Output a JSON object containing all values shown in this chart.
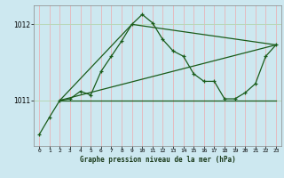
{
  "title": "Graphe pression niveau de la mer (hPa)",
  "bg_color": "#cde8f0",
  "line_color": "#1a5c1a",
  "grid_color_v": "#e8b4b8",
  "grid_color_h": "#b8d8b8",
  "xlim": [
    -0.5,
    23.5
  ],
  "ylim": [
    1010.4,
    1012.25
  ],
  "yticks": [
    1011,
    1012
  ],
  "xticks": [
    0,
    1,
    2,
    3,
    4,
    5,
    6,
    7,
    8,
    9,
    10,
    11,
    12,
    13,
    14,
    15,
    16,
    17,
    18,
    19,
    20,
    21,
    22,
    23
  ],
  "line1_x": [
    0,
    1,
    2,
    3,
    4,
    5,
    6,
    7,
    8,
    9,
    10,
    11,
    12,
    13,
    14,
    15,
    16,
    17,
    18,
    19,
    20,
    21,
    22,
    23
  ],
  "line1_y": [
    1010.55,
    1010.78,
    1011.0,
    1011.02,
    1011.12,
    1011.07,
    1011.38,
    1011.58,
    1011.78,
    1012.0,
    1012.13,
    1012.02,
    1011.8,
    1011.65,
    1011.58,
    1011.35,
    1011.25,
    1011.25,
    1011.02,
    1011.02,
    1011.1,
    1011.22,
    1011.58,
    1011.73
  ],
  "line2_x": [
    2,
    23
  ],
  "line2_y": [
    1011.0,
    1011.0
  ],
  "line3_x": [
    2,
    23
  ],
  "line3_y": [
    1011.0,
    1011.73
  ],
  "line4_x": [
    2,
    9,
    23
  ],
  "line4_y": [
    1011.0,
    1012.0,
    1011.73
  ]
}
